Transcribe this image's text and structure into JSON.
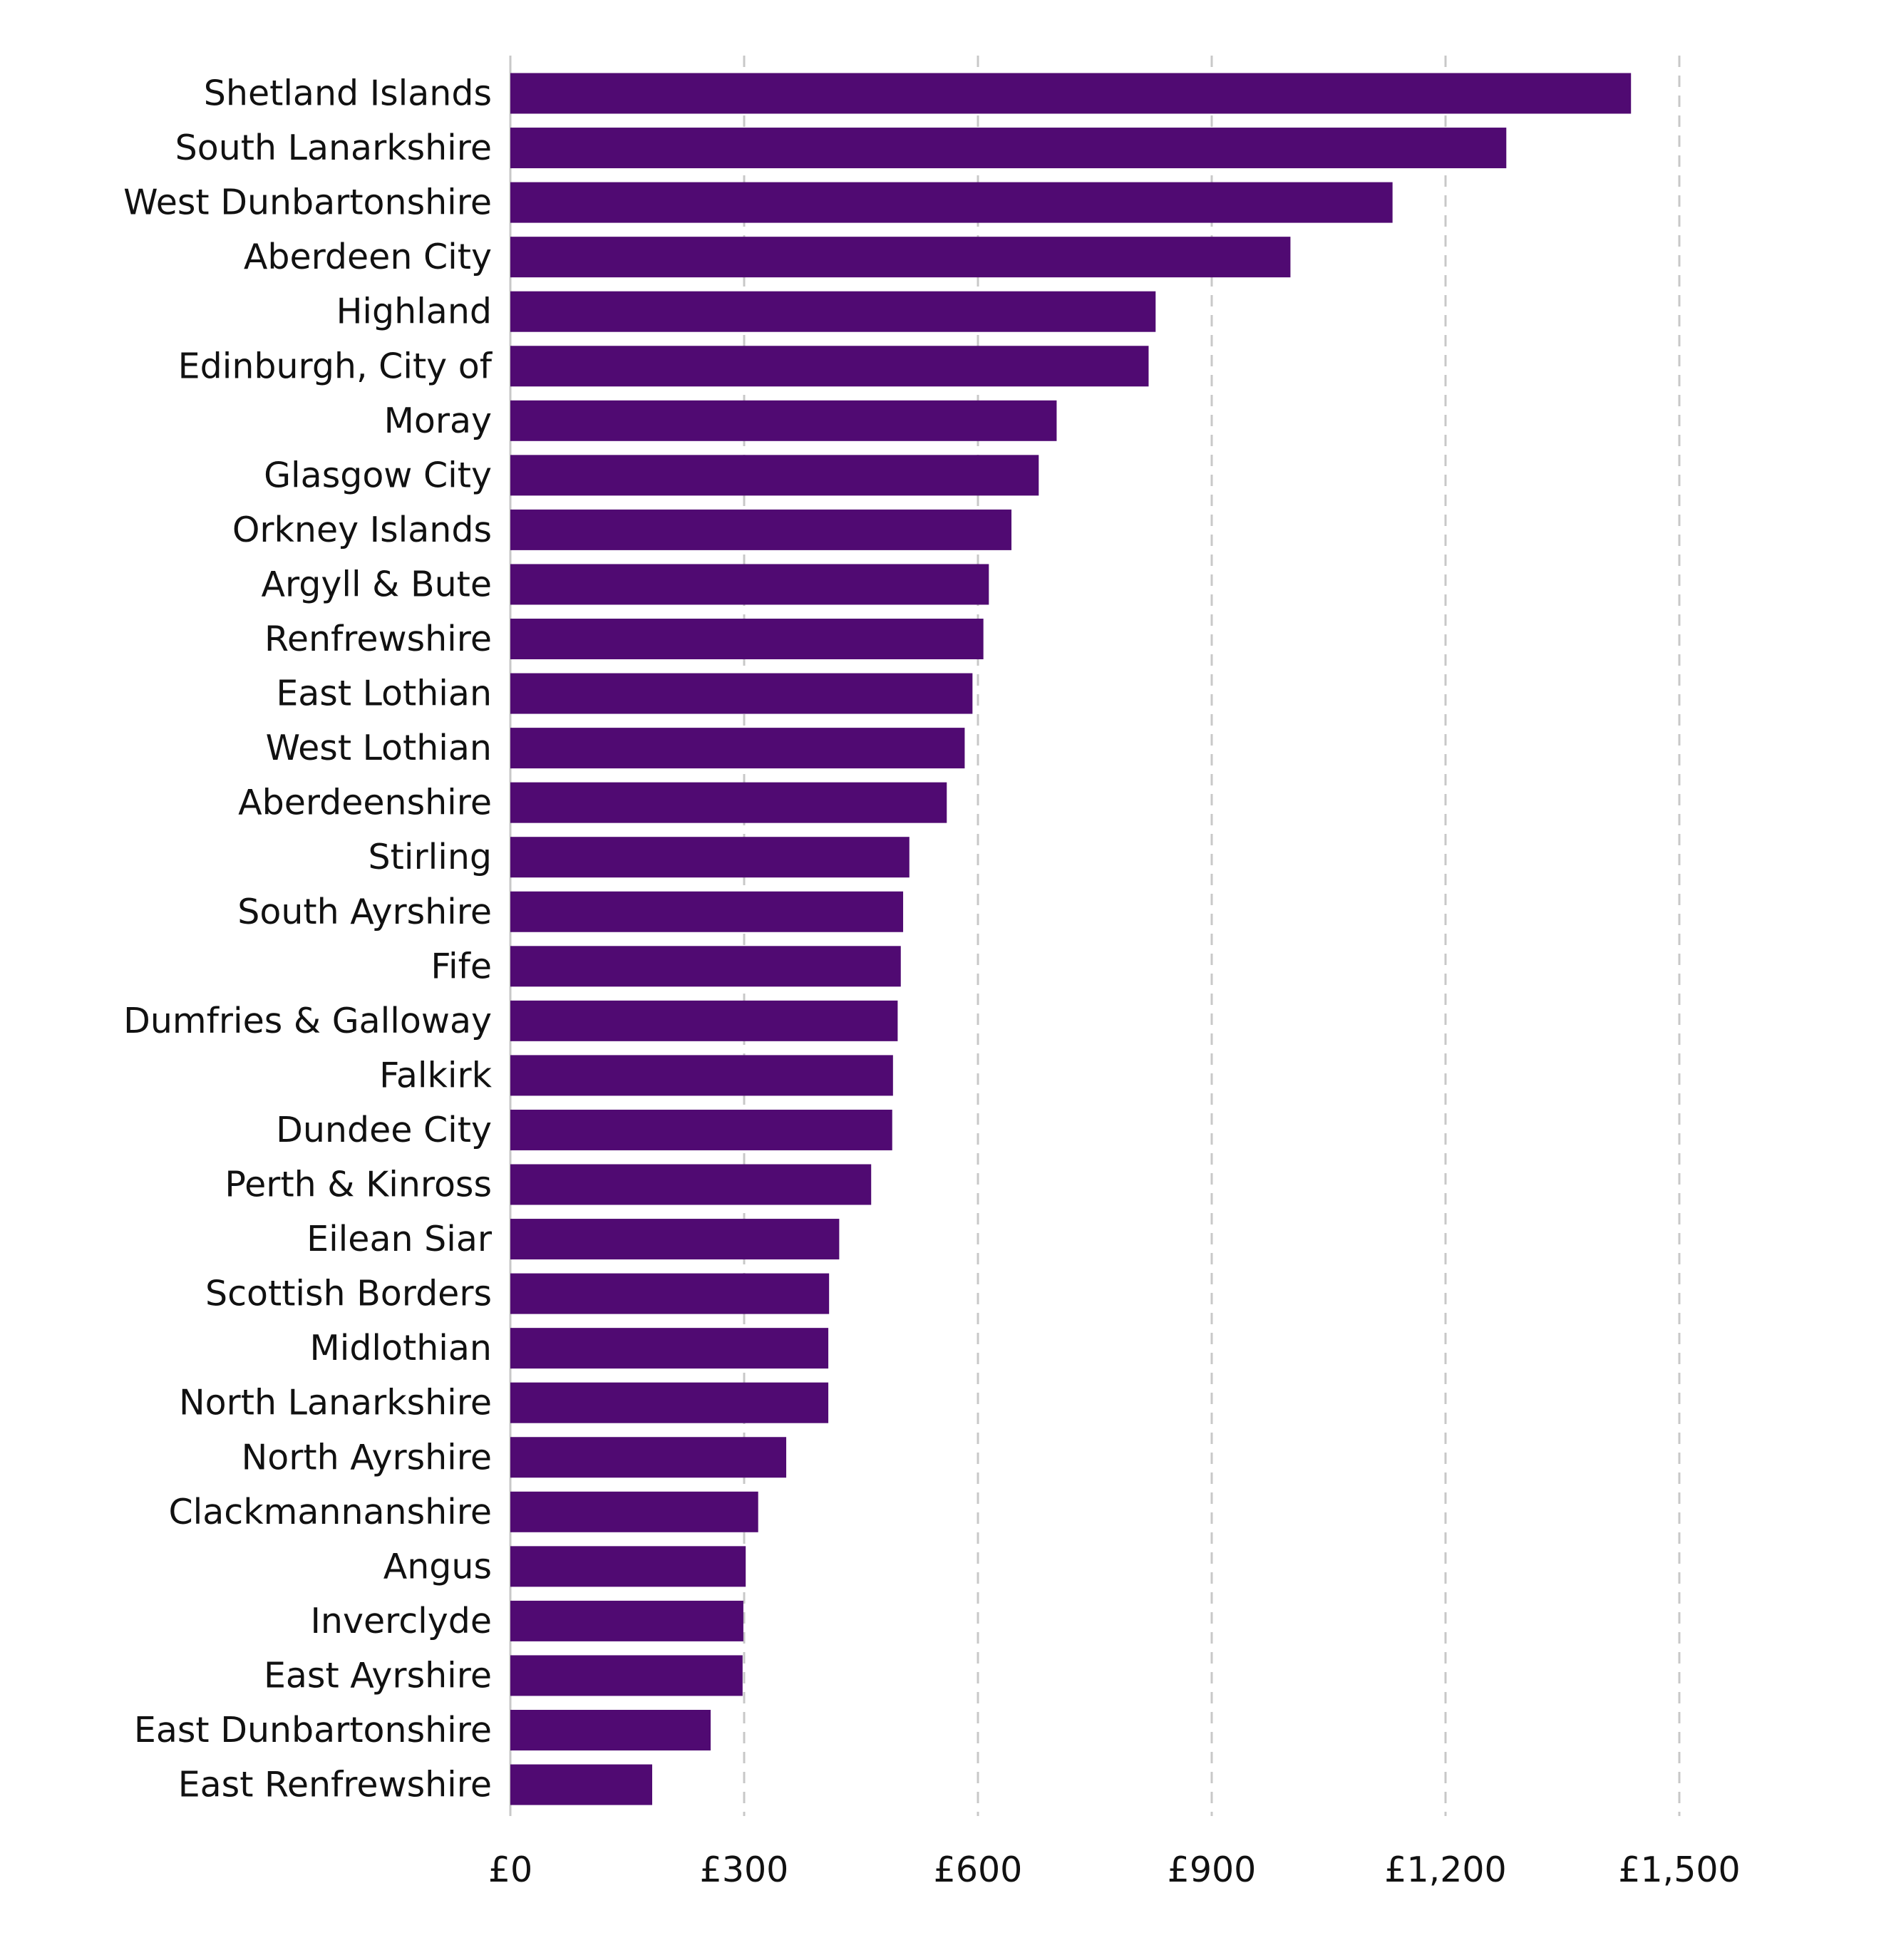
{
  "chart_data": {
    "type": "bar",
    "orientation": "horizontal",
    "title": "",
    "xlabel": "",
    "ylabel": "",
    "xlim": [
      0,
      1500
    ],
    "xticks": [
      0,
      300,
      600,
      900,
      1200,
      1500
    ],
    "xtick_labels": [
      "£0",
      "£300",
      "£600",
      "£900",
      "£1,200",
      "£1,500"
    ],
    "grid": true,
    "grid_style": "dashed vertical",
    "bar_color": "#500a72",
    "categories": [
      "Shetland Islands",
      "South Lanarkshire",
      "West Dunbartonshire",
      "Aberdeen City",
      "Highland",
      "Edinburgh, City of",
      "Moray",
      "Glasgow City",
      "Orkney Islands",
      "Argyll & Bute",
      "Renfrewshire",
      "East Lothian",
      "West Lothian",
      "Aberdeenshire",
      "Stirling",
      "South Ayrshire",
      "Fife",
      "Dumfries & Galloway",
      "Falkirk",
      "Dundee City",
      "Perth & Kinross",
      "Eilean Siar",
      "Scottish Borders",
      "Midlothian",
      "North Lanarkshire",
      "North Ayrshire",
      "Clackmannanshire",
      "Angus",
      "Inverclyde",
      "East Ayrshire",
      "East Dunbartonshire",
      "East Renfrewshire"
    ],
    "values": [
      1438,
      1278,
      1132,
      1001,
      828,
      819,
      701,
      678,
      643,
      614,
      607,
      593,
      583,
      560,
      512,
      504,
      501,
      497,
      491,
      490,
      463,
      422,
      409,
      408,
      408,
      354,
      318,
      302,
      299,
      298,
      257,
      182
    ]
  }
}
